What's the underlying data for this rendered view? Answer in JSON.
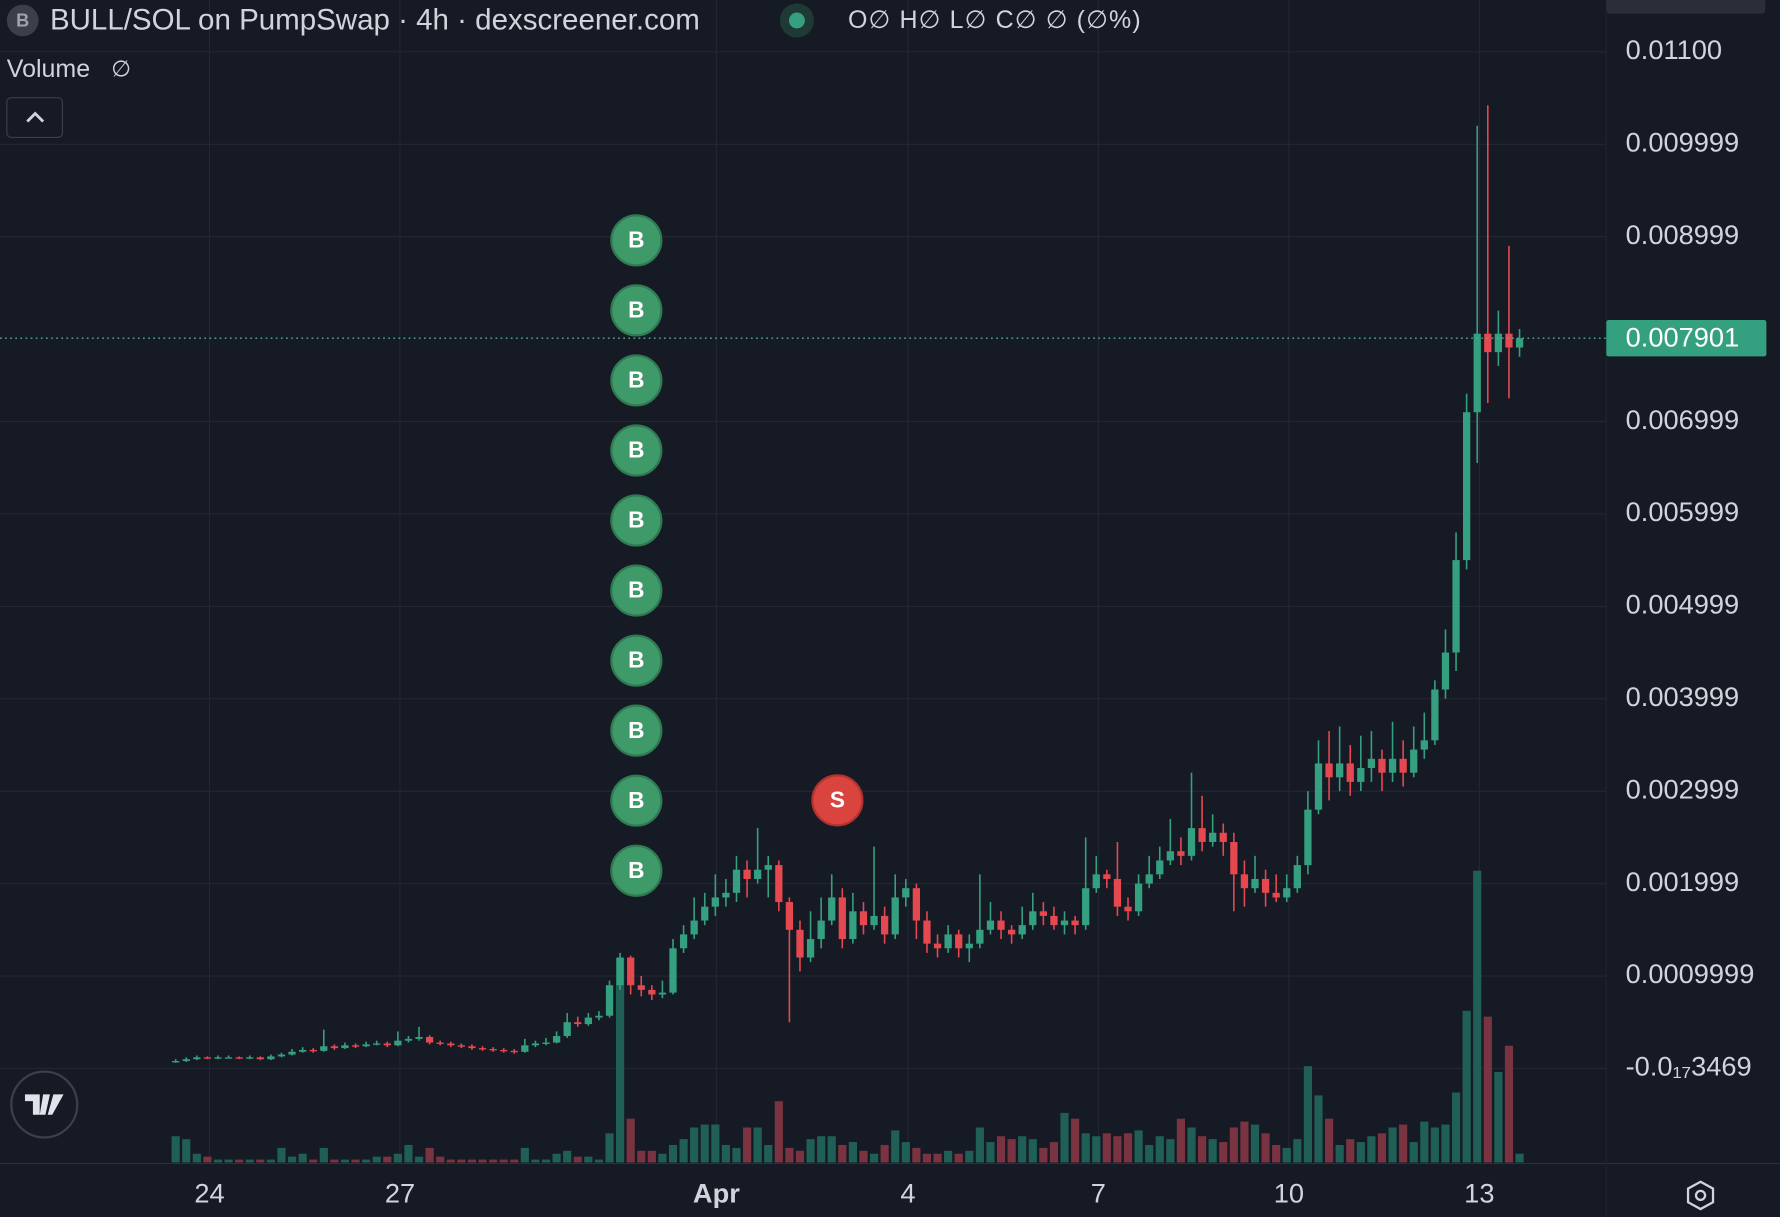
{
  "chart_data": {
    "type": "candlestick",
    "title": "BULL/SOL on PumpSwap · 4h · dexscreener.com",
    "symbol_badge": "B",
    "ohlc_legend": "O∅ H∅ L∅ C∅ ∅ (∅%)",
    "volume_label": "Volume",
    "volume_value": "∅",
    "colors": {
      "up": "#35a07f",
      "down": "#e5484f",
      "up_volume": "#1f5f55",
      "down_volume": "#7a3340"
    },
    "grid": true,
    "xlim": [
      -16.6,
      135.2
    ],
    "xticks": [
      {
        "value": 3.2,
        "label": "24"
      },
      {
        "value": 21.2,
        "label": "27"
      },
      {
        "value": 51.1,
        "label": "Apr"
      },
      {
        "value": 69.2,
        "label": "4"
      },
      {
        "value": 87.2,
        "label": "7"
      },
      {
        "value": 105.2,
        "label": "10"
      },
      {
        "value": 123.2,
        "label": "13"
      }
    ],
    "ylim": [
      -0.00103,
      0.01156
    ],
    "yticks": [
      {
        "value": 0.011,
        "label": "0.01100"
      },
      0.009999,
      0.008999,
      0.006999,
      0.005999,
      0.004999,
      0.003999,
      0.002999,
      0.001999,
      0.0009999,
      {
        "value": -3.469e-21,
        "label": "-0.0₁₇3469"
      }
    ],
    "last_price": {
      "value": 0.007901,
      "label": "0.007901"
    },
    "vlim": [
      0,
      100
    ],
    "trade_markers": [
      {
        "label": "B",
        "x": 43
      },
      {
        "label": "B",
        "x": 43
      },
      {
        "label": "B",
        "x": 43
      },
      {
        "label": "B",
        "x": 43
      },
      {
        "label": "B",
        "x": 43
      },
      {
        "label": "B",
        "x": 43
      },
      {
        "label": "B",
        "x": 43
      },
      {
        "label": "B",
        "x": 43
      },
      {
        "label": "B",
        "x": 43
      },
      {
        "label": "B",
        "x": 43
      },
      {
        "label": "S",
        "x": 62
      }
    ],
    "candles": [
      [
        7e-05,
        0.0001,
        6e-05,
        8e-05
      ],
      [
        8e-05,
        0.00012,
        7e-05,
        0.0001
      ],
      [
        0.0001,
        0.00014,
        9e-05,
        0.00012
      ],
      [
        0.00012,
        0.00013,
        0.0001,
        0.00011
      ],
      [
        0.00011,
        0.00014,
        0.0001,
        0.00012
      ],
      [
        0.00012,
        0.00014,
        0.00011,
        0.00012
      ],
      [
        0.00012,
        0.00013,
        0.0001,
        0.00011
      ],
      [
        0.00011,
        0.00014,
        0.0001,
        0.00012
      ],
      [
        0.00012,
        0.00013,
        9e-05,
        0.0001
      ],
      [
        0.0001,
        0.00015,
        9e-05,
        0.00013
      ],
      [
        0.00013,
        0.00017,
        0.00012,
        0.00015
      ],
      [
        0.00015,
        0.00021,
        0.00014,
        0.00018
      ],
      [
        0.00018,
        0.00023,
        0.00017,
        0.0002
      ],
      [
        0.0002,
        0.00022,
        0.00017,
        0.00019
      ],
      [
        0.00019,
        0.00042,
        0.00018,
        0.00024
      ],
      [
        0.00024,
        0.00026,
        0.0002,
        0.00022
      ],
      [
        0.00022,
        0.00028,
        0.00021,
        0.00025
      ],
      [
        0.00025,
        0.00027,
        0.00022,
        0.00024
      ],
      [
        0.00024,
        0.00029,
        0.00023,
        0.00026
      ],
      [
        0.00026,
        0.0003,
        0.00025,
        0.00027
      ],
      [
        0.00027,
        0.00029,
        0.00023,
        0.00025
      ],
      [
        0.00025,
        0.0004,
        0.00024,
        0.0003
      ],
      [
        0.0003,
        0.00035,
        0.00028,
        0.00032
      ],
      [
        0.00032,
        0.00045,
        0.0003,
        0.00034
      ],
      [
        0.00034,
        0.00036,
        0.00026,
        0.00028
      ],
      [
        0.00028,
        0.0003,
        0.00025,
        0.00027
      ],
      [
        0.00027,
        0.00029,
        0.00023,
        0.00025
      ],
      [
        0.00025,
        0.00027,
        0.00022,
        0.00024
      ],
      [
        0.00024,
        0.00026,
        0.0002,
        0.00022
      ],
      [
        0.00022,
        0.00024,
        0.00019,
        0.00021
      ],
      [
        0.00021,
        0.00023,
        0.00018,
        0.0002
      ],
      [
        0.0002,
        0.00022,
        0.00017,
        0.00019
      ],
      [
        0.00019,
        0.00021,
        0.00016,
        0.00018
      ],
      [
        0.00018,
        0.00032,
        0.00017,
        0.00025
      ],
      [
        0.00025,
        0.0003,
        0.00023,
        0.00027
      ],
      [
        0.00027,
        0.00033,
        0.00025,
        0.00028
      ],
      [
        0.00028,
        0.0004,
        0.00027,
        0.00035
      ],
      [
        0.00035,
        0.0006,
        0.00033,
        0.0005
      ],
      [
        0.0005,
        0.00056,
        0.00045,
        0.00048
      ],
      [
        0.00048,
        0.0006,
        0.00046,
        0.00055
      ],
      [
        0.00055,
        0.00062,
        0.00052,
        0.00057
      ],
      [
        0.00057,
        0.00095,
        0.00055,
        0.0009
      ],
      [
        0.0009,
        0.00125,
        0.00085,
        0.0012
      ],
      [
        0.0012,
        0.00122,
        0.0008,
        0.0009
      ],
      [
        0.0009,
        0.001,
        0.00078,
        0.00085
      ],
      [
        0.00085,
        0.0009,
        0.00074,
        0.0008
      ],
      [
        0.0008,
        0.00095,
        0.00076,
        0.00082
      ],
      [
        0.00082,
        0.0014,
        0.0008,
        0.0013
      ],
      [
        0.0013,
        0.00155,
        0.00125,
        0.00145
      ],
      [
        0.00145,
        0.00185,
        0.0014,
        0.0016
      ],
      [
        0.0016,
        0.0019,
        0.00155,
        0.00175
      ],
      [
        0.00175,
        0.0021,
        0.00165,
        0.00185
      ],
      [
        0.00185,
        0.00205,
        0.00175,
        0.0019
      ],
      [
        0.0019,
        0.0023,
        0.0018,
        0.00215
      ],
      [
        0.00215,
        0.00225,
        0.00185,
        0.00205
      ],
      [
        0.00205,
        0.0026,
        0.002,
        0.00215
      ],
      [
        0.00215,
        0.0023,
        0.00185,
        0.0022
      ],
      [
        0.0022,
        0.00225,
        0.0017,
        0.0018
      ],
      [
        0.0018,
        0.00185,
        0.0005,
        0.0015
      ],
      [
        0.0015,
        0.0016,
        0.00105,
        0.0012
      ],
      [
        0.0012,
        0.0017,
        0.00115,
        0.0014
      ],
      [
        0.0014,
        0.00185,
        0.0013,
        0.0016
      ],
      [
        0.0016,
        0.0021,
        0.00155,
        0.00185
      ],
      [
        0.00185,
        0.00195,
        0.0013,
        0.0014
      ],
      [
        0.0014,
        0.0019,
        0.00135,
        0.0017
      ],
      [
        0.0017,
        0.0018,
        0.00145,
        0.00155
      ],
      [
        0.00155,
        0.0024,
        0.0015,
        0.00165
      ],
      [
        0.00165,
        0.00175,
        0.00135,
        0.00145
      ],
      [
        0.00145,
        0.0021,
        0.0014,
        0.00185
      ],
      [
        0.00185,
        0.00205,
        0.00175,
        0.00195
      ],
      [
        0.00195,
        0.002,
        0.0014,
        0.0016
      ],
      [
        0.0016,
        0.0017,
        0.00125,
        0.00135
      ],
      [
        0.00135,
        0.00145,
        0.0012,
        0.0013
      ],
      [
        0.0013,
        0.00155,
        0.00125,
        0.00145
      ],
      [
        0.00145,
        0.0015,
        0.0012,
        0.0013
      ],
      [
        0.0013,
        0.00145,
        0.00115,
        0.00135
      ],
      [
        0.00135,
        0.0021,
        0.0013,
        0.0015
      ],
      [
        0.0015,
        0.0018,
        0.00145,
        0.0016
      ],
      [
        0.0016,
        0.0017,
        0.0014,
        0.0015
      ],
      [
        0.0015,
        0.00155,
        0.00135,
        0.00145
      ],
      [
        0.00145,
        0.00175,
        0.0014,
        0.00155
      ],
      [
        0.00155,
        0.0019,
        0.0015,
        0.0017
      ],
      [
        0.0017,
        0.0018,
        0.00155,
        0.00165
      ],
      [
        0.00165,
        0.00175,
        0.0015,
        0.00155
      ],
      [
        0.00155,
        0.0017,
        0.00145,
        0.0016
      ],
      [
        0.0016,
        0.00165,
        0.00145,
        0.00155
      ],
      [
        0.00155,
        0.0025,
        0.0015,
        0.00195
      ],
      [
        0.00195,
        0.0023,
        0.0019,
        0.0021
      ],
      [
        0.0021,
        0.00215,
        0.00195,
        0.00205
      ],
      [
        0.00205,
        0.00245,
        0.00165,
        0.00175
      ],
      [
        0.00175,
        0.00185,
        0.0016,
        0.0017
      ],
      [
        0.0017,
        0.0021,
        0.00165,
        0.002
      ],
      [
        0.002,
        0.0023,
        0.00195,
        0.0021
      ],
      [
        0.0021,
        0.0024,
        0.00205,
        0.00225
      ],
      [
        0.00225,
        0.0027,
        0.0022,
        0.00235
      ],
      [
        0.00235,
        0.0025,
        0.0022,
        0.0023
      ],
      [
        0.0023,
        0.0032,
        0.00225,
        0.0026
      ],
      [
        0.0026,
        0.00295,
        0.00235,
        0.00245
      ],
      [
        0.00245,
        0.00275,
        0.0024,
        0.00255
      ],
      [
        0.00255,
        0.00265,
        0.0023,
        0.00245
      ],
      [
        0.00245,
        0.00255,
        0.0017,
        0.0021
      ],
      [
        0.0021,
        0.00225,
        0.00175,
        0.00195
      ],
      [
        0.00195,
        0.0023,
        0.0019,
        0.00205
      ],
      [
        0.00205,
        0.00215,
        0.00175,
        0.0019
      ],
      [
        0.0019,
        0.0021,
        0.0018,
        0.00185
      ],
      [
        0.00185,
        0.0021,
        0.0018,
        0.00195
      ],
      [
        0.00195,
        0.0023,
        0.0019,
        0.0022
      ],
      [
        0.0022,
        0.003,
        0.0021,
        0.0028
      ],
      [
        0.0028,
        0.00355,
        0.00275,
        0.0033
      ],
      [
        0.0033,
        0.00365,
        0.0029,
        0.00315
      ],
      [
        0.00315,
        0.0037,
        0.003,
        0.0033
      ],
      [
        0.0033,
        0.0035,
        0.00295,
        0.0031
      ],
      [
        0.0031,
        0.0036,
        0.003,
        0.00325
      ],
      [
        0.00325,
        0.00365,
        0.0031,
        0.00335
      ],
      [
        0.00335,
        0.00345,
        0.003,
        0.0032
      ],
      [
        0.0032,
        0.00375,
        0.0031,
        0.00335
      ],
      [
        0.00335,
        0.00355,
        0.00305,
        0.0032
      ],
      [
        0.0032,
        0.0037,
        0.00315,
        0.00345
      ],
      [
        0.00345,
        0.00385,
        0.00335,
        0.00355
      ],
      [
        0.00355,
        0.0042,
        0.0035,
        0.0041
      ],
      [
        0.0041,
        0.00475,
        0.004,
        0.0045
      ],
      [
        0.0045,
        0.0058,
        0.0043,
        0.0055
      ],
      [
        0.0055,
        0.0073,
        0.0054,
        0.0071
      ],
      [
        0.0071,
        0.0102,
        0.00655,
        0.00795
      ],
      [
        0.00795,
        0.01042,
        0.0072,
        0.00775
      ],
      [
        0.00775,
        0.0082,
        0.0076,
        0.00795
      ],
      [
        0.00795,
        0.0089,
        0.00725,
        0.0078
      ],
      [
        0.0078,
        0.008,
        0.0077,
        0.007901
      ]
    ],
    "volumes": [
      9,
      8,
      3,
      2,
      1,
      1,
      1,
      1,
      1,
      1,
      5,
      2,
      3,
      1,
      5,
      1,
      1,
      1,
      1,
      2,
      2,
      3,
      6,
      2,
      5,
      2,
      1,
      1,
      1,
      1,
      1,
      1,
      1,
      5,
      1,
      1,
      3,
      4,
      2,
      2,
      1,
      10,
      70,
      15,
      4,
      4,
      3,
      6,
      8,
      12,
      13,
      13,
      6,
      5,
      12,
      12,
      6,
      21,
      5,
      4,
      8,
      9,
      9,
      6,
      7,
      4,
      3,
      6,
      11,
      7,
      5,
      3,
      3,
      4,
      3,
      4,
      12,
      7,
      9,
      8,
      9,
      8,
      5,
      7,
      17,
      15,
      10,
      9,
      10,
      9,
      10,
      11,
      6,
      9,
      8,
      15,
      12,
      9,
      8,
      7,
      12,
      14,
      13,
      10,
      6,
      5,
      8,
      33,
      23,
      15,
      6,
      8,
      7,
      9,
      10,
      12,
      13,
      7,
      14,
      12,
      13,
      24,
      52,
      100,
      50,
      31,
      40,
      3
    ]
  }
}
